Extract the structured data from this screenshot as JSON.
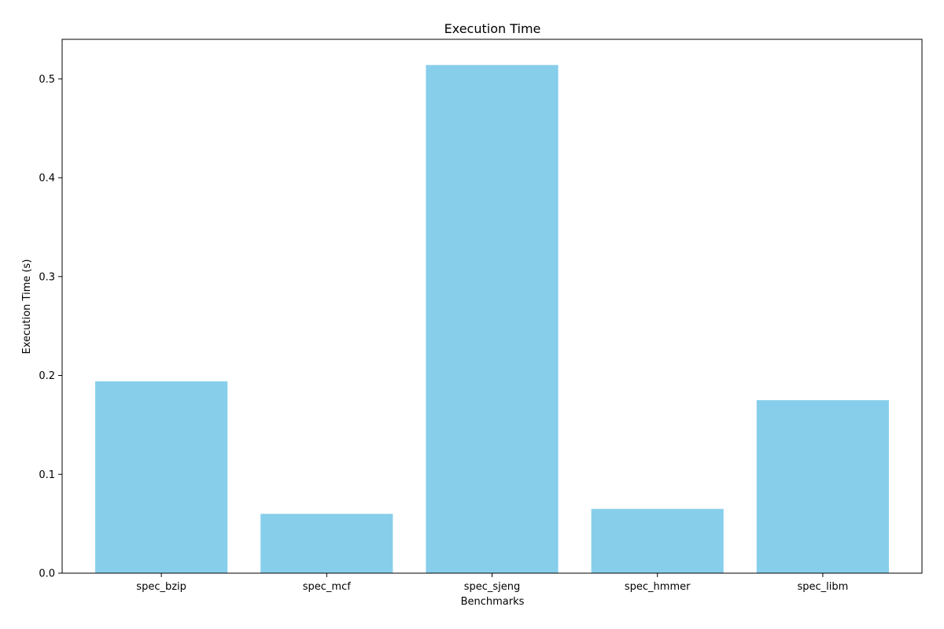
{
  "chart_data": {
    "type": "bar",
    "title": "Execution Time",
    "xlabel": "Benchmarks",
    "ylabel": "Execution Time (s)",
    "categories": [
      "spec_bzip",
      "spec_mcf",
      "spec_sjeng",
      "spec_hmmer",
      "spec_libm"
    ],
    "values": [
      0.194,
      0.06,
      0.514,
      0.065,
      0.175
    ],
    "ylim": [
      0,
      0.54
    ],
    "yticks": [
      0.0,
      0.1,
      0.2,
      0.3,
      0.4,
      0.5
    ],
    "ytick_labels": [
      "0.0",
      "0.1",
      "0.2",
      "0.3",
      "0.4",
      "0.5"
    ],
    "grid": false,
    "legend": "none",
    "bar_color": "#87ceeb"
  }
}
